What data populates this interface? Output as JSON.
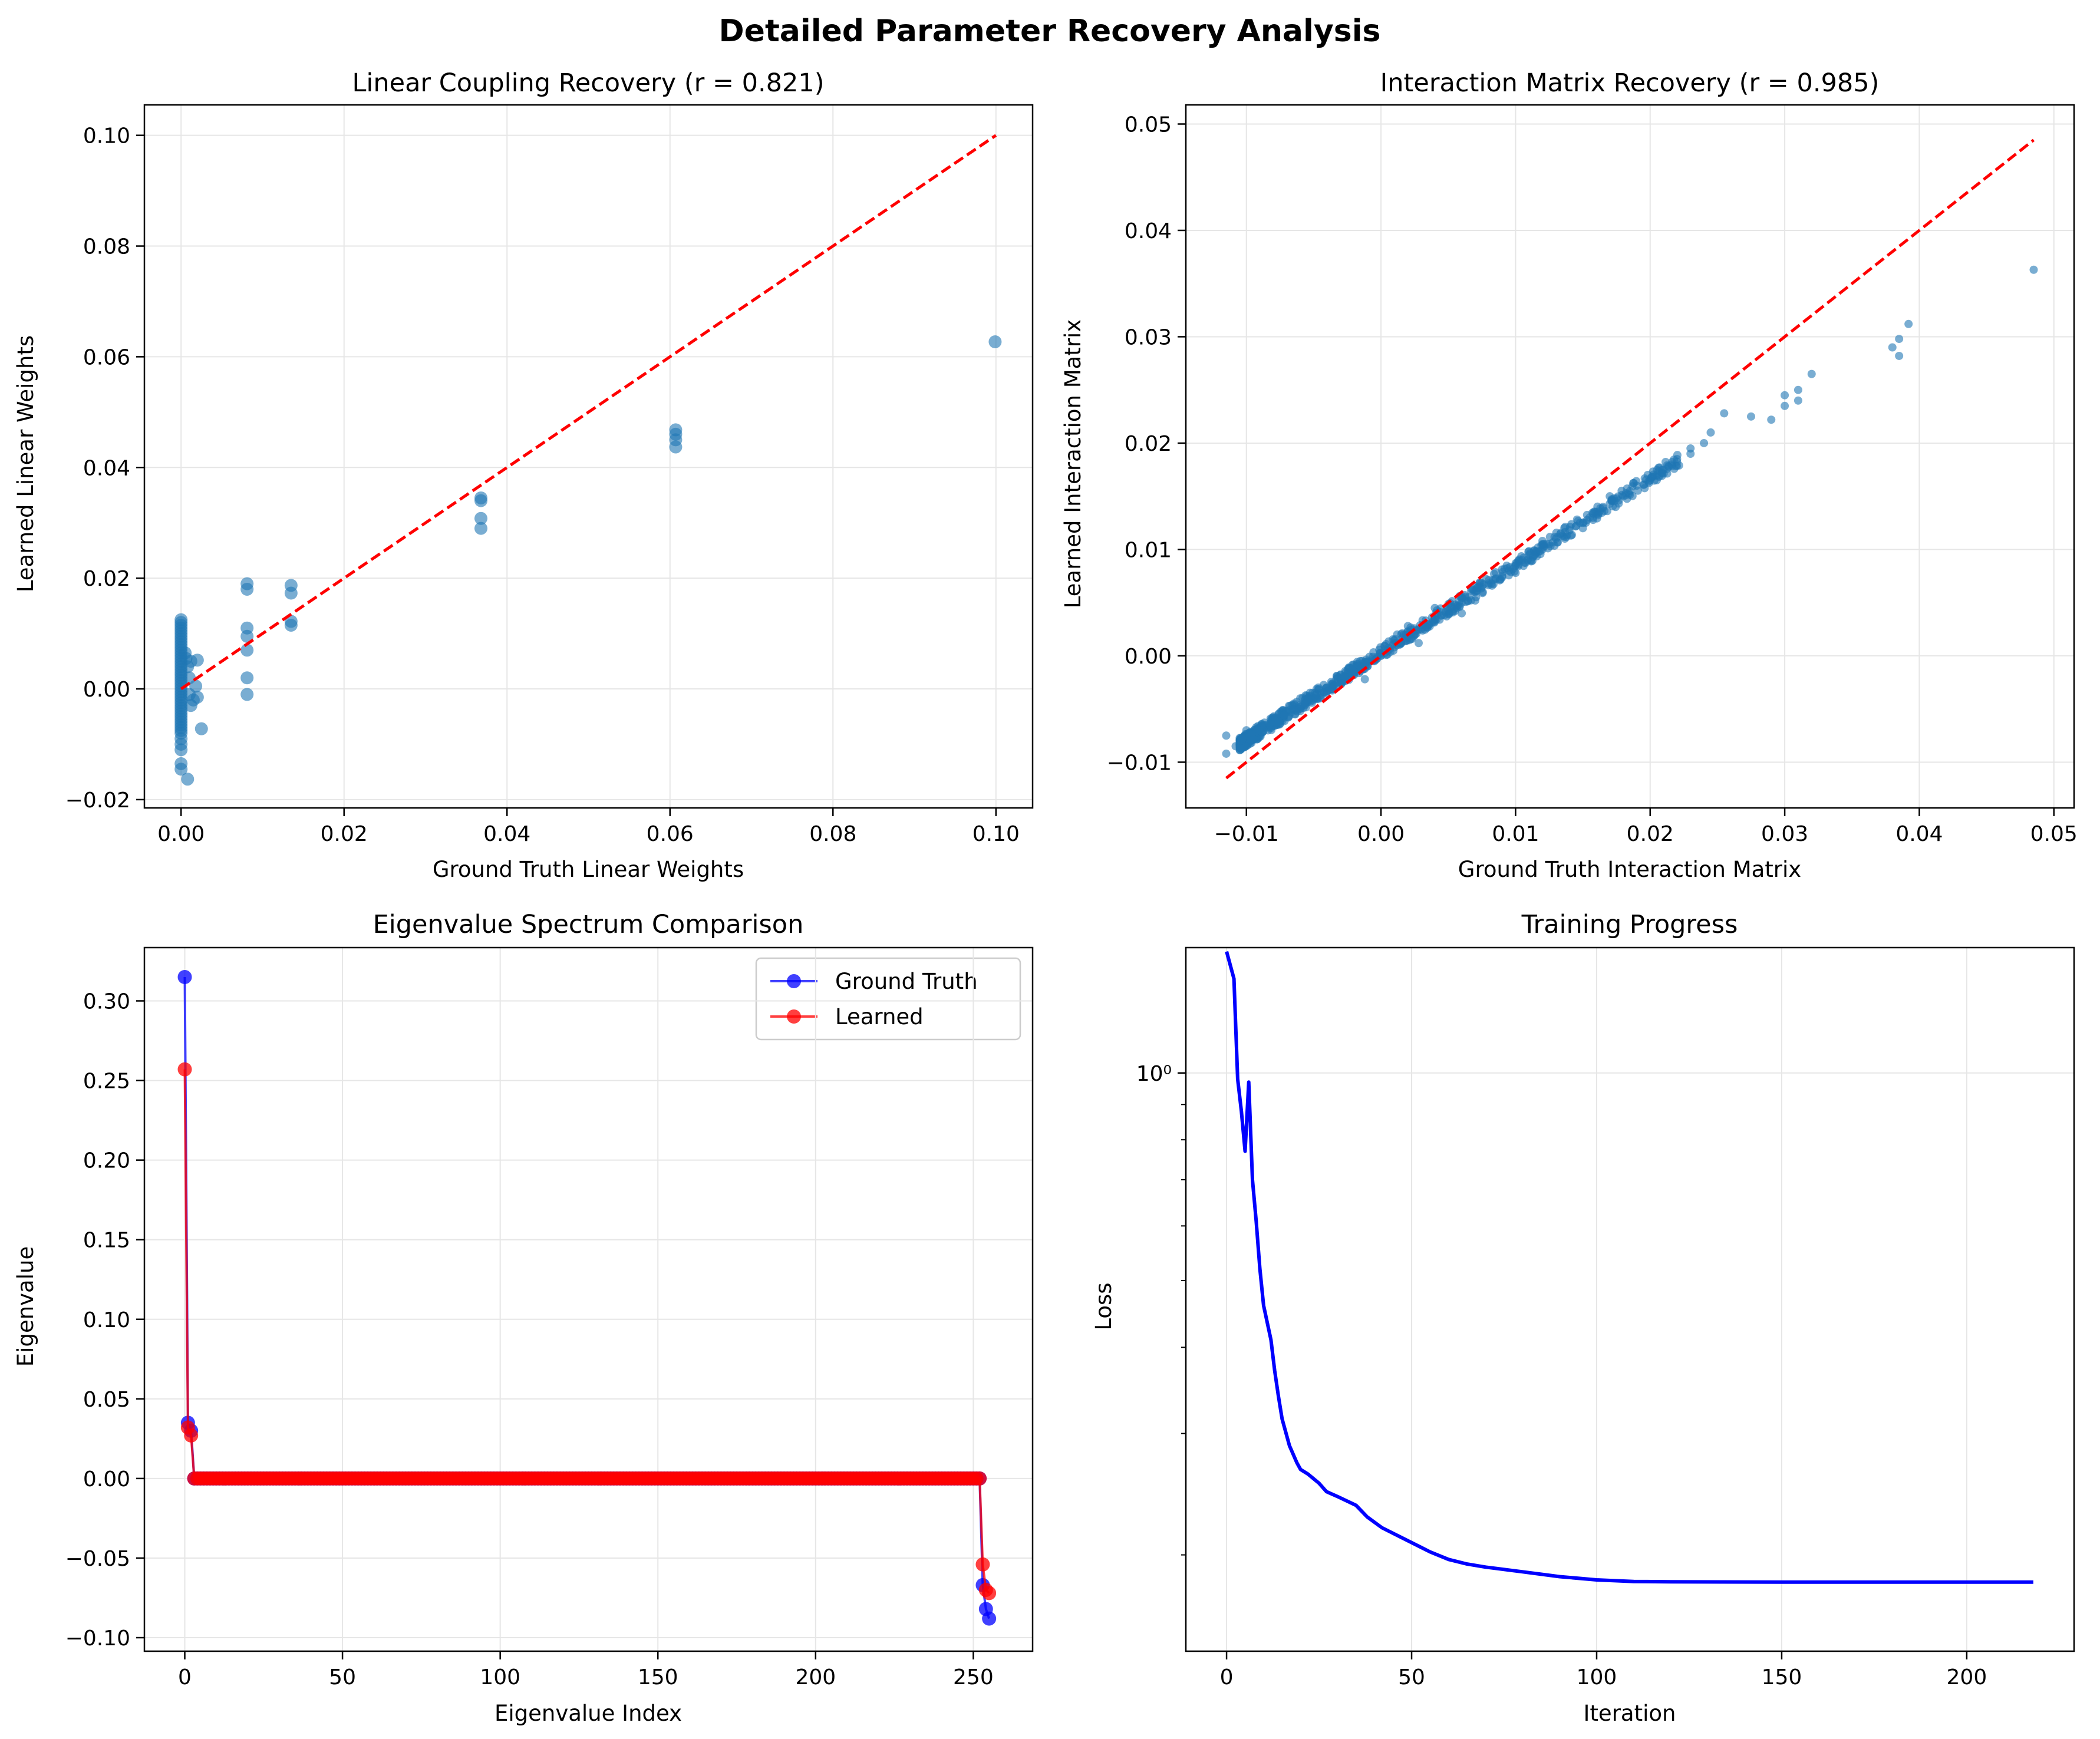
{
  "figure": {
    "title": "Detailed Parameter Recovery Analysis"
  },
  "colors": {
    "scatter": "#1f77b4",
    "identity_line": "#ff0000",
    "ground_truth": "#0000ff",
    "learned": "#ff0000",
    "loss": "#0000ff",
    "grid": "#e6e6e6"
  },
  "chart_data": [
    {
      "id": "linear",
      "type": "scatter",
      "title": "Linear Coupling Recovery (r = 0.821)",
      "xlabel": "Ground Truth Linear Weights",
      "ylabel": "Learned Linear Weights",
      "xlim": [
        -0.0045,
        0.1045
      ],
      "ylim": [
        -0.0215,
        0.1055
      ],
      "xticks": [
        0.0,
        0.02,
        0.04,
        0.06,
        0.08,
        0.1
      ],
      "xtick_labels": [
        "0.00",
        "0.02",
        "0.04",
        "0.06",
        "0.08",
        "0.10"
      ],
      "yticks": [
        -0.02,
        0.0,
        0.02,
        0.04,
        0.06,
        0.08,
        0.1
      ],
      "ytick_labels": [
        "−0.02",
        "0.00",
        "0.02",
        "0.04",
        "0.06",
        "0.08",
        "0.10"
      ],
      "grid": true,
      "identity_line": [
        [
          0,
          0
        ],
        [
          0.1,
          0.1
        ]
      ],
      "points": [
        [
          0,
          0.0125
        ],
        [
          0,
          0.012
        ],
        [
          0,
          0.0115
        ],
        [
          0,
          0.011
        ],
        [
          0,
          0.0105
        ],
        [
          0,
          0.01
        ],
        [
          0,
          0.0095
        ],
        [
          0,
          0.009
        ],
        [
          0,
          0.0085
        ],
        [
          0,
          0.008
        ],
        [
          0,
          0.0075
        ],
        [
          0,
          0.007
        ],
        [
          0,
          0.0065
        ],
        [
          0,
          0.006
        ],
        [
          0,
          0.0055
        ],
        [
          0,
          0.005
        ],
        [
          0,
          0.0045
        ],
        [
          0,
          0.004
        ],
        [
          0,
          0.0035
        ],
        [
          0,
          0.003
        ],
        [
          0,
          0.0025
        ],
        [
          0,
          0.002
        ],
        [
          0,
          0.0015
        ],
        [
          0,
          0.001
        ],
        [
          0,
          0.0005
        ],
        [
          0,
          0.0
        ],
        [
          0,
          -0.0005
        ],
        [
          0,
          -0.001
        ],
        [
          0,
          -0.0015
        ],
        [
          0,
          -0.002
        ],
        [
          0,
          -0.0025
        ],
        [
          0,
          -0.003
        ],
        [
          0,
          -0.0035
        ],
        [
          0,
          -0.004
        ],
        [
          0,
          -0.0045
        ],
        [
          0,
          -0.005
        ],
        [
          0,
          -0.0055
        ],
        [
          0,
          -0.006
        ],
        [
          0,
          -0.0065
        ],
        [
          0,
          -0.007
        ],
        [
          0,
          -0.0075
        ],
        [
          0,
          -0.008
        ],
        [
          0,
          -0.009
        ],
        [
          0,
          -0.01
        ],
        [
          0,
          -0.011
        ],
        [
          0,
          -0.0135
        ],
        [
          0,
          -0.0145
        ],
        [
          0.0008,
          -0.0163
        ],
        [
          0.0005,
          0.0065
        ],
        [
          0.0008,
          0.004
        ],
        [
          0.001,
          0.002
        ],
        [
          0.001,
          -0.001
        ],
        [
          0.0012,
          0.005
        ],
        [
          0.0015,
          -0.002
        ],
        [
          0.0018,
          0.0005
        ],
        [
          0.002,
          0.0052
        ],
        [
          0.002,
          -0.0015
        ],
        [
          0.0025,
          -0.0072
        ],
        [
          0.0012,
          -0.003
        ],
        [
          0.0006,
          0.0055
        ],
        [
          0.0081,
          0.019
        ],
        [
          0.0081,
          0.018
        ],
        [
          0.0081,
          0.011
        ],
        [
          0.0081,
          0.0095
        ],
        [
          0.0081,
          0.007
        ],
        [
          0.0081,
          0.002
        ],
        [
          0.0081,
          -0.001
        ],
        [
          0.0135,
          0.0187
        ],
        [
          0.0135,
          0.0173
        ],
        [
          0.0135,
          0.0122
        ],
        [
          0.0135,
          0.0115
        ],
        [
          0.0368,
          0.0345
        ],
        [
          0.0368,
          0.034
        ],
        [
          0.0368,
          0.0308
        ],
        [
          0.0368,
          0.029
        ],
        [
          0.0607,
          0.0468
        ],
        [
          0.0607,
          0.046
        ],
        [
          0.0607,
          0.045
        ],
        [
          0.0607,
          0.0437
        ],
        [
          0.0999,
          0.0627
        ]
      ]
    },
    {
      "id": "matrix",
      "type": "scatter",
      "title": "Interaction Matrix Recovery (r = 0.985)",
      "xlabel": "Ground Truth Interaction Matrix",
      "ylabel": "Learned Interaction Matrix",
      "xlim": [
        -0.0145,
        0.0515
      ],
      "ylim": [
        -0.0143,
        0.0518
      ],
      "xticks": [
        -0.01,
        0.0,
        0.01,
        0.02,
        0.03,
        0.04,
        0.05
      ],
      "xtick_labels": [
        "−0.01",
        "0.00",
        "0.01",
        "0.02",
        "0.03",
        "0.04",
        "0.05"
      ],
      "yticks": [
        -0.01,
        0.0,
        0.01,
        0.02,
        0.03,
        0.04,
        0.05
      ],
      "ytick_labels": [
        "−0.01",
        "0.00",
        "0.01",
        "0.02",
        "0.03",
        "0.04",
        "0.05"
      ],
      "grid": true,
      "identity_line": [
        [
          -0.0115,
          -0.0115
        ],
        [
          0.0485,
          0.0485
        ]
      ],
      "points": [
        [
          -0.0115,
          -0.0075
        ],
        [
          -0.0115,
          -0.0092
        ],
        [
          -0.0108,
          -0.0085
        ],
        [
          -0.01,
          -0.007
        ],
        [
          -0.0095,
          -0.0072
        ],
        [
          -0.009,
          -0.0068
        ],
        [
          -0.0085,
          -0.0065
        ],
        [
          -0.008,
          -0.006
        ],
        [
          -0.0075,
          -0.0058
        ],
        [
          -0.007,
          -0.0052
        ],
        [
          -0.0065,
          -0.005
        ],
        [
          -0.006,
          -0.0048
        ],
        [
          -0.0055,
          -0.0042
        ],
        [
          -0.005,
          -0.004
        ],
        [
          -0.0045,
          -0.0035
        ],
        [
          -0.004,
          -0.0033
        ],
        [
          -0.0035,
          -0.0028
        ],
        [
          -0.003,
          -0.0025
        ],
        [
          -0.0025,
          -0.0022
        ],
        [
          -0.002,
          -0.0018
        ],
        [
          -0.0015,
          -0.0012
        ],
        [
          -0.001,
          -0.001
        ],
        [
          -0.0005,
          -0.0005
        ],
        [
          0.0,
          0.0
        ],
        [
          0.0005,
          0.0005
        ],
        [
          0.001,
          0.0008
        ],
        [
          0.0015,
          0.0012
        ],
        [
          0.002,
          0.0018
        ],
        [
          0.0025,
          0.002
        ],
        [
          0.003,
          0.0025
        ],
        [
          0.0035,
          0.003
        ],
        [
          0.004,
          0.0034
        ],
        [
          0.0045,
          0.0038
        ],
        [
          0.005,
          0.0042
        ],
        [
          0.0055,
          0.0048
        ],
        [
          0.006,
          0.005
        ],
        [
          0.0065,
          0.0055
        ],
        [
          0.007,
          0.006
        ],
        [
          0.0075,
          0.0065
        ],
        [
          0.008,
          0.0068
        ],
        [
          0.0085,
          0.0072
        ],
        [
          0.009,
          0.0075
        ],
        [
          0.0095,
          0.008
        ],
        [
          0.01,
          0.0085
        ],
        [
          0.0105,
          0.009
        ],
        [
          0.011,
          0.0095
        ],
        [
          0.0115,
          0.0098
        ],
        [
          0.012,
          0.01
        ],
        [
          0.0125,
          0.0105
        ],
        [
          0.013,
          0.011
        ],
        [
          0.0135,
          0.0113
        ],
        [
          0.014,
          0.0118
        ],
        [
          0.0145,
          0.0122
        ],
        [
          0.015,
          0.0125
        ],
        [
          0.0155,
          0.013
        ],
        [
          0.016,
          0.0135
        ],
        [
          0.0165,
          0.014
        ],
        [
          0.017,
          0.0143
        ],
        [
          0.0175,
          0.0148
        ],
        [
          0.018,
          0.015
        ],
        [
          0.0185,
          0.0155
        ],
        [
          0.019,
          0.016
        ],
        [
          0.02,
          0.0165
        ],
        [
          0.021,
          0.0175
        ],
        [
          0.022,
          0.0185
        ],
        [
          0.023,
          0.019
        ],
        [
          0.024,
          0.02
        ],
        [
          0.0245,
          0.021
        ],
        [
          0.0255,
          0.0228
        ],
        [
          0.0275,
          0.0225
        ],
        [
          0.029,
          0.0222
        ],
        [
          0.03,
          0.0235
        ],
        [
          0.03,
          0.0245
        ],
        [
          0.031,
          0.025
        ],
        [
          0.031,
          0.024
        ],
        [
          0.032,
          0.0265
        ],
        [
          0.038,
          0.029
        ],
        [
          0.0385,
          0.0298
        ],
        [
          0.0385,
          0.0282
        ],
        [
          0.0392,
          0.0312
        ],
        [
          0.0485,
          0.0363
        ],
        [
          -0.006,
          -0.004
        ],
        [
          -0.003,
          -0.0018
        ],
        [
          0.0012,
          0.002
        ],
        [
          0.002,
          0.0028
        ],
        [
          0.004,
          0.0045
        ],
        [
          0.007,
          0.0052
        ],
        [
          0.01,
          0.0078
        ],
        [
          0.015,
          0.012
        ],
        [
          0.0205,
          0.017
        ],
        [
          0.0028,
          0.0012
        ],
        [
          -0.0012,
          -0.0022
        ],
        [
          0.006,
          0.004
        ],
        [
          0.012,
          0.0108
        ],
        [
          0.017,
          0.015
        ],
        [
          0.023,
          0.0195
        ]
      ]
    },
    {
      "id": "eigen",
      "type": "line",
      "title": "Eigenvalue Spectrum Comparison",
      "xlabel": "Eigenvalue Index",
      "ylabel": "Eigenvalue",
      "xlim": [
        -12.8,
        268.8
      ],
      "ylim": [
        -0.1085,
        0.3335
      ],
      "xticks": [
        0,
        50,
        100,
        150,
        200,
        250
      ],
      "xtick_labels": [
        "0",
        "50",
        "100",
        "150",
        "200",
        "250"
      ],
      "yticks": [
        -0.1,
        -0.05,
        0.0,
        0.05,
        0.1,
        0.15,
        0.2,
        0.25,
        0.3
      ],
      "ytick_labels": [
        "−0.10",
        "−0.05",
        "0.00",
        "0.05",
        "0.10",
        "0.15",
        "0.20",
        "0.25",
        "0.30"
      ],
      "grid": true,
      "legend": {
        "position": "upper-right"
      },
      "n_points": 256,
      "series": [
        {
          "name": "Ground Truth",
          "head": [
            0.315,
            0.035,
            0.03
          ],
          "tail": [
            -0.067,
            -0.082,
            -0.088
          ]
        },
        {
          "name": "Learned",
          "head": [
            0.257,
            0.032,
            0.027
          ],
          "tail": [
            -0.054,
            -0.07,
            -0.072
          ]
        }
      ]
    },
    {
      "id": "loss",
      "type": "line",
      "title": "Training Progress",
      "xlabel": "Iteration",
      "ylabel": "Loss",
      "yscale": "log",
      "xlim": [
        -11,
        229
      ],
      "ylim": [
        0.145,
        1.52
      ],
      "xticks": [
        0,
        50,
        100,
        150,
        200
      ],
      "xtick_labels": [
        "0",
        "50",
        "100",
        "150",
        "200"
      ],
      "yticks": [
        1.0
      ],
      "ytick_labels": [
        "10⁰"
      ],
      "yminor_ticks": [
        0.2,
        0.3,
        0.4,
        0.5,
        0.6,
        0.7,
        0.8,
        0.9
      ],
      "grid": true,
      "x": [
        0,
        2,
        3,
        4,
        5,
        6,
        7,
        8,
        9,
        10,
        12,
        13,
        14,
        15,
        17,
        19,
        20,
        22,
        25,
        27,
        30,
        35,
        38,
        42,
        48,
        55,
        60,
        65,
        70,
        80,
        90,
        100,
        110,
        120,
        150,
        200,
        218
      ],
      "values": [
        1.5,
        1.37,
        0.98,
        0.88,
        0.77,
        0.97,
        0.7,
        0.61,
        0.52,
        0.46,
        0.41,
        0.37,
        0.34,
        0.315,
        0.288,
        0.272,
        0.266,
        0.262,
        0.254,
        0.247,
        0.243,
        0.236,
        0.227,
        0.219,
        0.211,
        0.202,
        0.197,
        0.194,
        0.192,
        0.189,
        0.186,
        0.184,
        0.183,
        0.1828,
        0.1826,
        0.1826,
        0.1826
      ]
    }
  ]
}
